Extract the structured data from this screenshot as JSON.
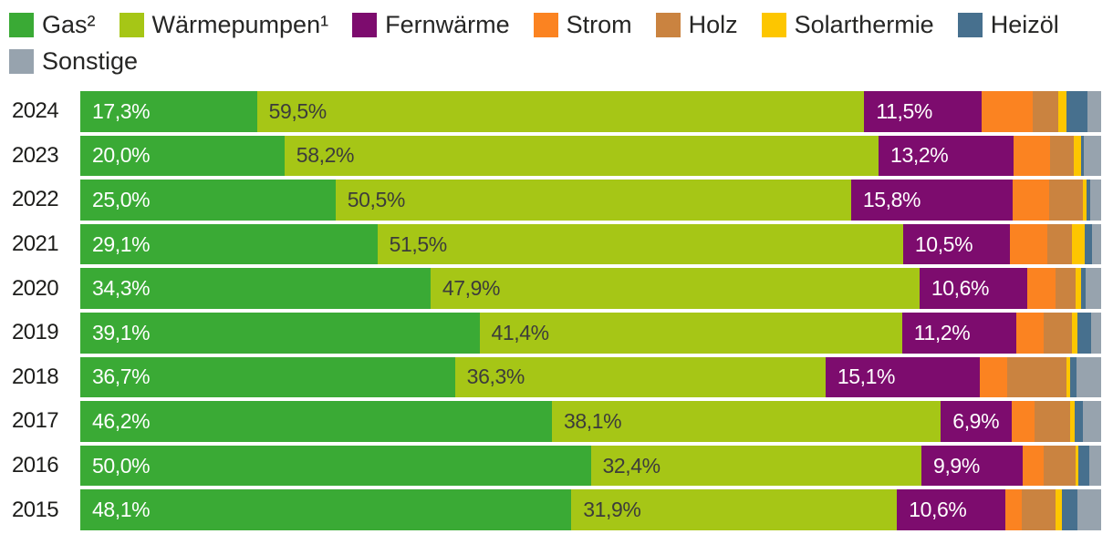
{
  "page": {
    "background": "#ffffff"
  },
  "legend_position": "top",
  "chart_data": {
    "type": "bar",
    "orientation": "horizontal_stacked",
    "unit": "%",
    "xlim": [
      0,
      100
    ],
    "grid": false,
    "categories": [
      "2024",
      "2023",
      "2022",
      "2021",
      "2020",
      "2019",
      "2018",
      "2017",
      "2016",
      "2015"
    ],
    "series": [
      {
        "key": "gas",
        "name": "Gas²",
        "color": "#3aaa35",
        "label_color": "#ffffff",
        "show_labels": true,
        "values": [
          17.3,
          20.0,
          25.0,
          29.1,
          34.3,
          39.1,
          36.7,
          46.2,
          50.0,
          48.1
        ],
        "labels": [
          "17,3%",
          "20,0%",
          "25,0%",
          "29,1%",
          "34,3%",
          "39,1%",
          "36,7%",
          "46,2%",
          "50,0%",
          "48,1%"
        ]
      },
      {
        "key": "waermepumpen",
        "name": "Wärmepumpen¹",
        "color": "#a6c616",
        "label_color": "#3c3c3b",
        "show_labels": true,
        "values": [
          59.5,
          58.2,
          50.5,
          51.5,
          47.9,
          41.4,
          36.3,
          38.1,
          32.4,
          31.9
        ],
        "labels": [
          "59,5%",
          "58,2%",
          "50,5%",
          "51,5%",
          "47,9%",
          "41,4%",
          "36,3%",
          "38,1%",
          "32,4%",
          "31,9%"
        ]
      },
      {
        "key": "fernwaerme",
        "name": "Fernwärme",
        "color": "#7d0c6e",
        "label_color": "#ffffff",
        "show_labels": true,
        "values": [
          11.5,
          13.2,
          15.8,
          10.5,
          10.6,
          11.2,
          15.1,
          6.9,
          9.9,
          10.6
        ],
        "labels": [
          "11,5%",
          "13,2%",
          "15,8%",
          "10,5%",
          "10,6%",
          "11,2%",
          "15,1%",
          "6,9%",
          "9,9%",
          "10,6%"
        ]
      },
      {
        "key": "strom",
        "name": "Strom",
        "color": "#fb8321",
        "label_color": "#ffffff",
        "show_labels": false,
        "values": [
          5.0,
          3.6,
          3.6,
          3.6,
          2.7,
          2.7,
          2.7,
          2.3,
          2.1,
          1.6
        ],
        "labels": []
      },
      {
        "key": "holz",
        "name": "Holz",
        "color": "#ca8340",
        "label_color": "#ffffff",
        "show_labels": false,
        "values": [
          2.5,
          2.3,
          3.3,
          2.4,
          2.0,
          2.7,
          5.8,
          3.5,
          3.1,
          3.3
        ],
        "labels": []
      },
      {
        "key": "solarthermie",
        "name": "Solarthermie",
        "color": "#fdc600",
        "label_color": "#3c3c3b",
        "show_labels": false,
        "values": [
          0.8,
          0.7,
          0.4,
          1.3,
          0.5,
          0.6,
          0.4,
          0.4,
          0.3,
          0.7
        ],
        "labels": []
      },
      {
        "key": "heizoel",
        "name": "Heizöl",
        "color": "#47708e",
        "label_color": "#ffffff",
        "show_labels": false,
        "values": [
          2.1,
          0.3,
          0.3,
          0.7,
          0.5,
          1.3,
          0.6,
          0.8,
          1.0,
          1.5
        ],
        "labels": []
      },
      {
        "key": "sonstige",
        "name": "Sonstige",
        "color": "#97a3ae",
        "label_color": "#3c3c3b",
        "show_labels": false,
        "values": [
          1.3,
          1.7,
          1.1,
          0.9,
          1.5,
          1.0,
          2.4,
          1.8,
          1.2,
          2.3
        ],
        "labels": []
      }
    ]
  }
}
